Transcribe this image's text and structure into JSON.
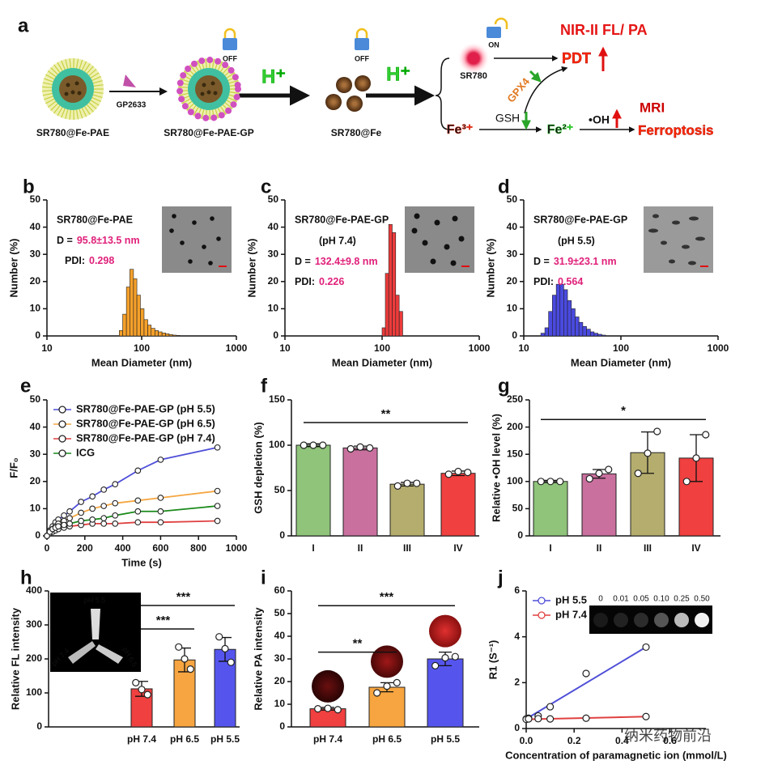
{
  "diagram": {
    "label": "a",
    "np1": "SR780@Fe-PAE",
    "peptide": "GP2633",
    "np2": "SR780@Fe-PAE-GP",
    "lock1": "OFF",
    "lock2": "OFF",
    "acid1": "H⁺",
    "acid2": "H⁺",
    "np3": "SR780@Fe",
    "dye": "SR780",
    "lock3": "ON",
    "imaging": "NIR-II FL/ PA",
    "pdt": "PDT",
    "gpx4": "GPX4",
    "gsh": "GSH",
    "fe3": "Fe³⁺",
    "fe2": "Fe²⁺",
    "oh": "•OH",
    "mri": "MRI",
    "ferroptosis": "Ferroptosis"
  },
  "chart_data": [
    {
      "label": "b",
      "type": "histogram",
      "title": "SR780@Fe-PAE",
      "d_label": "D =",
      "d_value": "95.8±13.5 nm",
      "pdi_label": "PDI:",
      "pdi_value": "0.298",
      "color": "#f5a02a",
      "bins": [
        58,
        63,
        69,
        75,
        82,
        89,
        97,
        106,
        116,
        126,
        138,
        150,
        164,
        179,
        195,
        213,
        232,
        253
      ],
      "counts": [
        2,
        8,
        18,
        24.5,
        21,
        15,
        10,
        6,
        4,
        2.8,
        2,
        1.5,
        1.1,
        0.8,
        0.5,
        0.3,
        0.2
      ],
      "xlabel": "Mean Diameter (nm)",
      "ylabel": "Number (%)",
      "xlim": [
        10,
        1000
      ],
      "xticks": [
        10,
        100,
        1000
      ],
      "xlog": true,
      "ylim": [
        0,
        50
      ],
      "yticks": [
        0,
        10,
        20,
        30,
        40,
        50
      ]
    },
    {
      "label": "c",
      "type": "histogram",
      "title": "SR780@Fe-PAE-GP",
      "subtitle": "(pH 7.4)",
      "d_label": "D =",
      "d_value": "132.4±9.8 nm",
      "pdi_label": "PDI:",
      "pdi_value": "0.226",
      "color": "#ee3b3b",
      "bins": [
        100,
        108,
        117,
        127,
        138,
        150,
        163
      ],
      "counts": [
        3,
        23,
        41,
        38,
        15,
        9
      ],
      "xlabel": "Mean Diameter (nm)",
      "ylabel": "Number (%)",
      "xlim": [
        10,
        1000
      ],
      "xticks": [
        10,
        100,
        1000
      ],
      "xlog": true,
      "ylim": [
        0,
        50
      ],
      "yticks": [
        0,
        10,
        20,
        30,
        40,
        50
      ]
    },
    {
      "label": "d",
      "type": "histogram",
      "title": "SR780@Fe-PAE-GP",
      "subtitle": "(pH 5.5)",
      "d_label": "D =",
      "d_value": "31.9±23.1 nm",
      "pdi_label": "PDI:",
      "pdi_value": "0.564",
      "color": "#4a4ae0",
      "bins": [
        15,
        16.5,
        18,
        19.7,
        21.6,
        23.6,
        25.8,
        28.2,
        30.9,
        33.8,
        37,
        40.5,
        44.3,
        48.5,
        53,
        58,
        63.5,
        69.5
      ],
      "counts": [
        1,
        3,
        9,
        15,
        19,
        19,
        17,
        13,
        10,
        7,
        5,
        3.5,
        2.5,
        1.5,
        1,
        0.6,
        0.3
      ],
      "xlabel": "Mean Diameter (nm)",
      "ylabel": "Number (%)",
      "xlim": [
        10,
        1000
      ],
      "xticks": [
        10,
        100,
        1000
      ],
      "xlog": true,
      "ylim": [
        0,
        50
      ],
      "yticks": [
        0,
        10,
        20,
        30,
        40,
        50
      ]
    },
    {
      "label": "e",
      "type": "line",
      "x": [
        0,
        15,
        30,
        45,
        60,
        90,
        120,
        180,
        240,
        300,
        360,
        480,
        600,
        900
      ],
      "series": [
        {
          "name": "SR780@Fe-PAE-GP (pH 5.5)",
          "color": "#4f4fd8",
          "values": [
            0,
            2,
            3.5,
            5,
            6,
            7.5,
            9,
            12.5,
            14.5,
            17,
            19,
            24,
            28,
            32.5
          ]
        },
        {
          "name": "SR780@Fe-PAE-GP (pH 6.5)",
          "color": "#f5a742",
          "values": [
            0,
            1.5,
            2.5,
            3.5,
            4.5,
            5.5,
            6.5,
            8.5,
            10,
            11,
            12,
            13,
            14,
            16.5
          ]
        },
        {
          "name": "SR780@Fe-PAE-GP (pH 7.4)",
          "color": "#e04040",
          "values": [
            0,
            1,
            1.5,
            2,
            2.5,
            3,
            3.5,
            4,
            4.5,
            4.5,
            4.5,
            5,
            5,
            5.5
          ]
        },
        {
          "name": "ICG",
          "color": "#1a8a1a",
          "values": [
            0,
            1.5,
            2.5,
            3,
            3.5,
            4,
            4.5,
            5.5,
            6,
            6.5,
            7.5,
            9,
            9,
            11
          ]
        }
      ],
      "xlabel": "Time (s)",
      "ylabel": "F/F₀",
      "xlim": [
        0,
        1000
      ],
      "xticks": [
        0,
        200,
        400,
        600,
        800,
        1000
      ],
      "ylim": [
        0,
        50
      ],
      "yticks": [
        0,
        10,
        20,
        30,
        40,
        50
      ],
      "legend": "upper left"
    },
    {
      "label": "f",
      "type": "bar",
      "categories": [
        "I",
        "II",
        "III",
        "IV"
      ],
      "values": [
        100,
        97,
        57,
        69
      ],
      "errors": [
        1.5,
        2,
        2,
        2.5
      ],
      "points": [
        [
          100,
          100,
          100
        ],
        [
          96,
          98,
          97
        ],
        [
          55,
          58,
          58
        ],
        [
          68,
          71,
          70
        ]
      ],
      "colors": [
        "#8fc47a",
        "#c9709e",
        "#b5ad6e",
        "#f04040"
      ],
      "ylabel": "GSH depletion (%)",
      "ylim": [
        0,
        150
      ],
      "yticks": [
        0,
        50,
        100,
        150
      ],
      "significance": [
        "**"
      ]
    },
    {
      "label": "g",
      "type": "bar",
      "categories": [
        "I",
        "II",
        "III",
        "IV"
      ],
      "values": [
        100,
        114,
        153,
        143
      ],
      "errors": [
        2,
        8,
        38,
        43
      ],
      "points": [
        [
          100,
          100,
          100
        ],
        [
          105,
          115,
          122
        ],
        [
          115,
          152,
          192
        ],
        [
          100,
          143,
          186
        ]
      ],
      "colors": [
        "#8fc47a",
        "#c9709e",
        "#b5ad6e",
        "#f04040"
      ],
      "ylabel": "Relative •OH level (%)",
      "ylim": [
        0,
        250
      ],
      "yticks": [
        0,
        50,
        100,
        150,
        200,
        250
      ],
      "significance": [
        "*"
      ]
    },
    {
      "label": "h",
      "type": "bar",
      "categories": [
        "pH 7.4",
        "pH 6.5",
        "pH 5.5"
      ],
      "values": [
        112,
        197,
        228
      ],
      "errors": [
        22,
        35,
        35
      ],
      "points": [
        [
          130,
          110,
          95
        ],
        [
          235,
          200,
          170
        ],
        [
          265,
          230,
          190
        ]
      ],
      "colors": [
        "#f04040",
        "#f7a540",
        "#5555ee"
      ],
      "ylabel": "Relative FL intensity",
      "ylim": [
        0,
        400
      ],
      "yticks": [
        0,
        100,
        200,
        300,
        400
      ],
      "significance": [
        "***",
        "***"
      ],
      "inset_labels": [
        "pH 5.5",
        "pH 7.4",
        "pH 6.5"
      ]
    },
    {
      "label": "i",
      "type": "bar",
      "categories": [
        "pH 7.4",
        "pH 6.5",
        "pH 5.5"
      ],
      "values": [
        8,
        17.5,
        30
      ],
      "errors": [
        0.6,
        2,
        3
      ],
      "points": [
        [
          8,
          8.2,
          7.6
        ],
        [
          15,
          18,
          19.5
        ],
        [
          27,
          30.5,
          31
        ]
      ],
      "colors": [
        "#f04040",
        "#f7a540",
        "#5555ee"
      ],
      "ylabel": "Relative PA intensity",
      "ylim": [
        0,
        60
      ],
      "yticks": [
        0,
        10,
        20,
        30,
        40,
        50,
        60
      ],
      "significance": [
        "**",
        "***"
      ]
    },
    {
      "label": "j",
      "type": "scatter",
      "x": [
        0,
        0.01,
        0.05,
        0.1,
        0.25,
        0.5
      ],
      "series": [
        {
          "name": "pH 5.5",
          "color": "#4f4fd8",
          "values": [
            0.42,
            0.45,
            0.55,
            0.95,
            2.4,
            3.55
          ]
        },
        {
          "name": "pH 7.4",
          "color": "#e04040",
          "values": [
            0.4,
            0.42,
            0.43,
            0.42,
            0.45,
            0.52
          ]
        }
      ],
      "xlabel": "Concentration of paramagnetic ion (mmol/L)",
      "ylabel": "R1 (S⁻¹)",
      "xlim": [
        0,
        0.75
      ],
      "xticks": [
        {
          "value": 0,
          "label": "0.0"
        },
        0.2,
        0.4,
        0.6
      ],
      "ylim": [
        0,
        6
      ],
      "yticks": [
        0,
        2,
        4,
        6
      ],
      "legend": "upper left",
      "inset_labels": [
        "0",
        "0.01",
        "0.05",
        "0.10",
        "0.25",
        "0.50"
      ]
    }
  ],
  "watermark": "纳米药物前沿"
}
